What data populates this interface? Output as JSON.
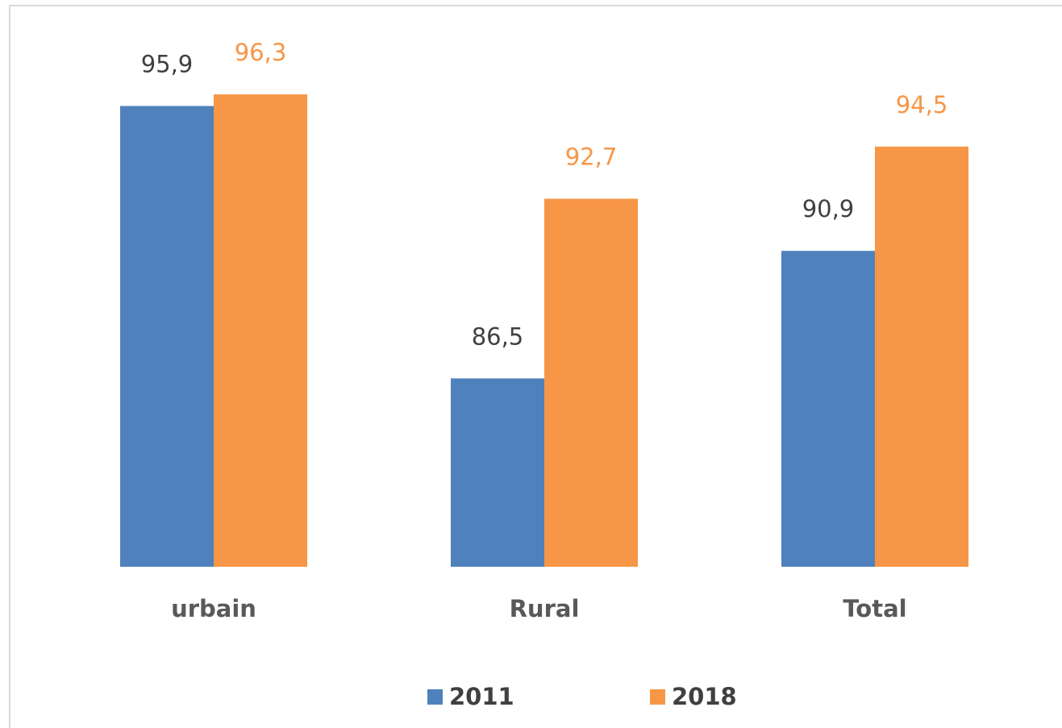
{
  "chart_data": {
    "type": "bar",
    "categories": [
      "urbain",
      "Rural",
      "Total"
    ],
    "series": [
      {
        "name": "2011",
        "color": "#4f81bd",
        "label_color": "#404040",
        "values": [
          95.9,
          86.5,
          90.9
        ],
        "value_labels": [
          "95,9",
          "86,5",
          "90,9"
        ]
      },
      {
        "name": "2018",
        "color": "#f79646",
        "label_color": "#f79646",
        "values": [
          96.3,
          92.7,
          94.5
        ],
        "value_labels": [
          "96,3",
          "92,7",
          "94,5"
        ]
      }
    ],
    "ylim": [
      80,
      98
    ],
    "legend": "bottom"
  }
}
